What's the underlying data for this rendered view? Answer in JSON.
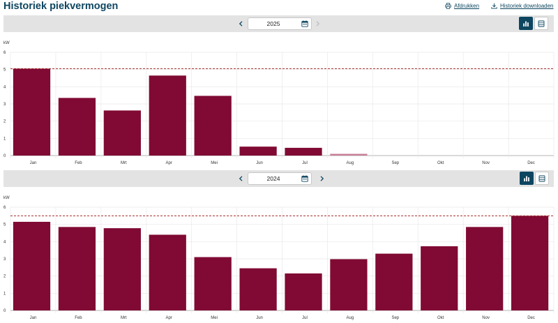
{
  "header": {
    "title": "Historiek piekvermogen",
    "print_label": "Afdrukken",
    "download_label": "Historiek downloaden"
  },
  "colors": {
    "bar": "#800a33",
    "bar_light": "#c87f97",
    "threshold_line": "#a52a2a",
    "accent": "#0e4660",
    "toolbar_bg": "#e3e3e3"
  },
  "charts": [
    {
      "year": "2025",
      "next_enabled": false,
      "view": "chart"
    },
    {
      "year": "2024",
      "next_enabled": true,
      "view": "chart"
    }
  ],
  "chart_data": [
    {
      "type": "bar",
      "ylabel": "kW",
      "ylim": [
        0,
        6
      ],
      "yticks": [
        "0",
        "1",
        "2",
        "3",
        "4",
        "5",
        "6"
      ],
      "categories": [
        "Jan",
        "Feb",
        "Mrt",
        "Apr",
        "Mei",
        "Jun",
        "Jul",
        "Aug",
        "Sep",
        "Okt",
        "Nov",
        "Dec"
      ],
      "values": [
        5.05,
        3.35,
        2.62,
        4.65,
        3.47,
        0.52,
        0.45,
        0.1,
        null,
        null,
        null,
        null
      ],
      "partial_index": 7,
      "threshold": 5.05,
      "grid": true
    },
    {
      "type": "bar",
      "ylabel": "kW",
      "ylim": [
        0,
        6
      ],
      "yticks": [
        "0",
        "1",
        "2",
        "3",
        "4",
        "5",
        "6"
      ],
      "categories": [
        "Jan",
        "Feb",
        "Mrt",
        "Apr",
        "Mei",
        "Jun",
        "Jul",
        "Aug",
        "Sep",
        "Okt",
        "Nov",
        "Dec"
      ],
      "values": [
        5.15,
        4.85,
        4.78,
        4.4,
        3.1,
        2.45,
        2.15,
        2.98,
        3.3,
        3.73,
        4.85,
        5.5
      ],
      "partial_index": null,
      "threshold": 5.5,
      "grid": true
    }
  ]
}
